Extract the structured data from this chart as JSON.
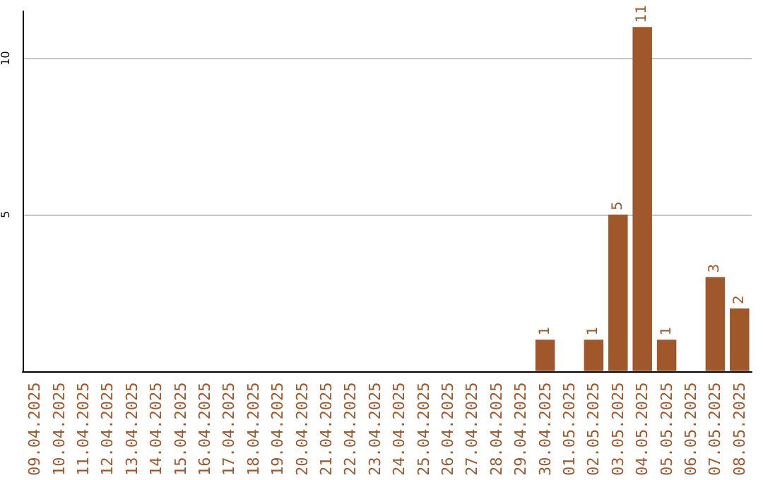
{
  "chart_data": {
    "type": "bar",
    "categories": [
      "09.04.2025",
      "10.04.2025",
      "11.04.2025",
      "12.04.2025",
      "13.04.2025",
      "14.04.2025",
      "15.04.2025",
      "16.04.2025",
      "17.04.2025",
      "18.04.2025",
      "19.04.2025",
      "20.04.2025",
      "21.04.2025",
      "22.04.2025",
      "23.04.2025",
      "24.04.2025",
      "25.04.2025",
      "26.04.2025",
      "27.04.2025",
      "28.04.2025",
      "29.04.2025",
      "30.04.2025",
      "01.05.2025",
      "02.05.2025",
      "03.05.2025",
      "04.05.2025",
      "05.05.2025",
      "06.05.2025",
      "07.05.2025",
      "08.05.2025"
    ],
    "values": [
      0,
      0,
      0,
      0,
      0,
      0,
      0,
      0,
      0,
      0,
      0,
      0,
      0,
      0,
      0,
      0,
      0,
      0,
      0,
      0,
      0,
      1,
      0,
      1,
      5,
      11,
      1,
      0,
      3,
      2
    ],
    "value_labels": [
      null,
      null,
      null,
      null,
      null,
      null,
      null,
      null,
      null,
      null,
      null,
      null,
      null,
      null,
      null,
      null,
      null,
      null,
      null,
      null,
      null,
      "1",
      null,
      "1",
      "5",
      "11",
      "1",
      null,
      "3",
      "2"
    ],
    "color": "#a0582a",
    "ylim": [
      0,
      11.5
    ],
    "yticks": [
      {
        "value": 0,
        "label": null
      },
      5,
      10
    ],
    "grid": "y"
  }
}
